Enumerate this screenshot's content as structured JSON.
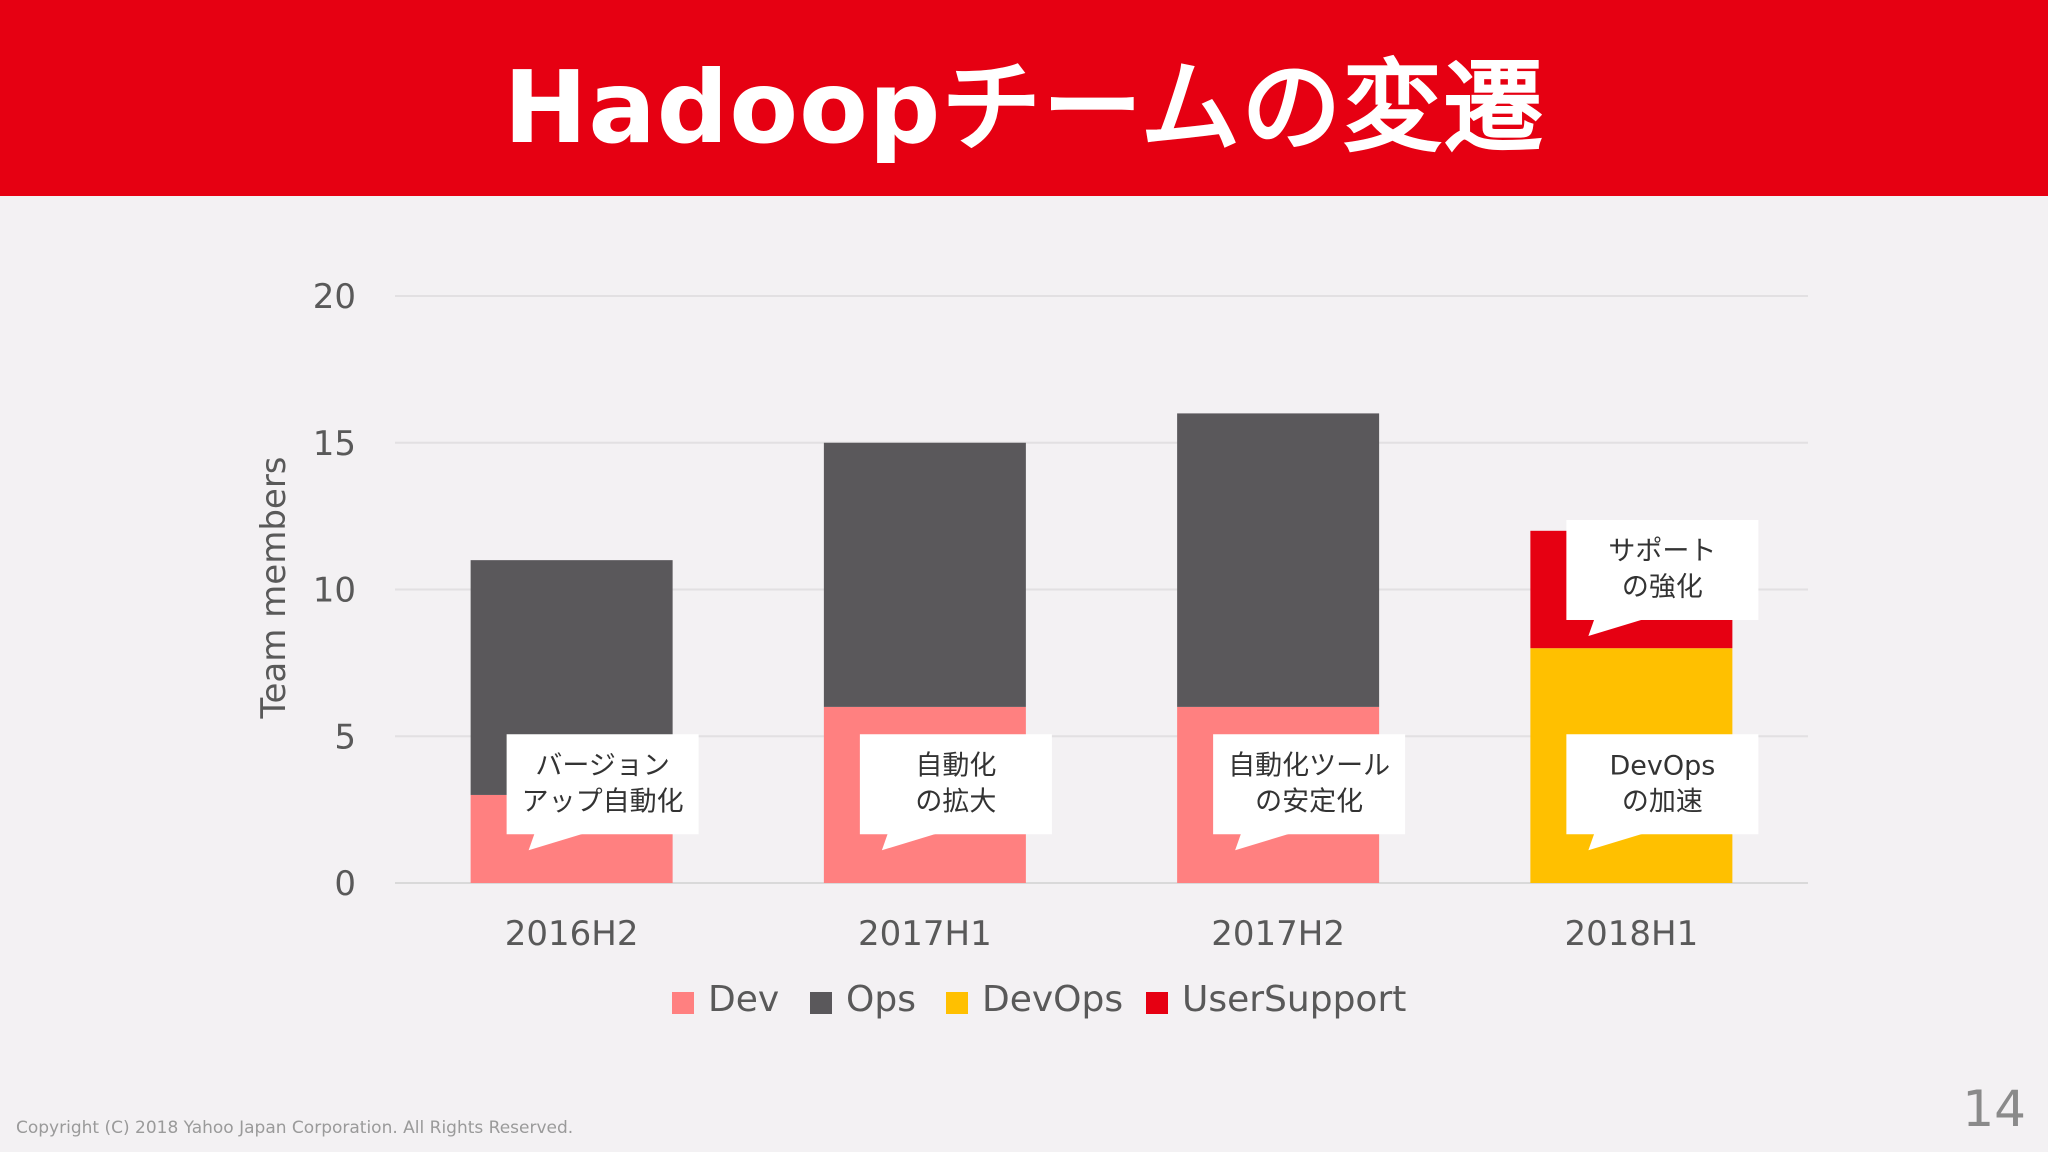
{
  "slide": {
    "title": "Hadoopチームの変遷",
    "copyright": "Copyright (C) 2018 Yahoo Japan Corporation. All Rights Reserved.",
    "page_number": "14"
  },
  "chart_data": {
    "type": "bar",
    "stacked": true,
    "categories": [
      "2016H2",
      "2017H1",
      "2017H2",
      "2018H1"
    ],
    "series": [
      {
        "name": "Dev",
        "color": "#ff8080",
        "values": [
          3,
          6,
          6,
          0
        ]
      },
      {
        "name": "Ops",
        "color": "#5a585b",
        "values": [
          8,
          9,
          10,
          0
        ]
      },
      {
        "name": "DevOps",
        "color": "#ffc000",
        "values": [
          0,
          0,
          0,
          8
        ]
      },
      {
        "name": "UserSupport",
        "color": "#e60012",
        "values": [
          0,
          0,
          0,
          4
        ]
      }
    ],
    "ylabel": "Team members",
    "ylim": [
      0,
      20
    ],
    "yticks": [
      0,
      5,
      10,
      15,
      20
    ],
    "grid": true,
    "legend": "bottom",
    "callouts": [
      {
        "category": "2016H2",
        "y": 5,
        "lines": [
          "バージョン",
          "アップ自動化"
        ]
      },
      {
        "category": "2017H1",
        "y": 5,
        "lines": [
          "自動化",
          "の拡大"
        ]
      },
      {
        "category": "2017H2",
        "y": 5,
        "lines": [
          "自動化ツール",
          "の安定化"
        ]
      },
      {
        "category": "2018H1",
        "y": 5,
        "lines": [
          "DevOps",
          "の加速"
        ]
      },
      {
        "category": "2018H1",
        "y": 12.3,
        "lines": [
          "サポート",
          "の強化"
        ]
      }
    ]
  }
}
